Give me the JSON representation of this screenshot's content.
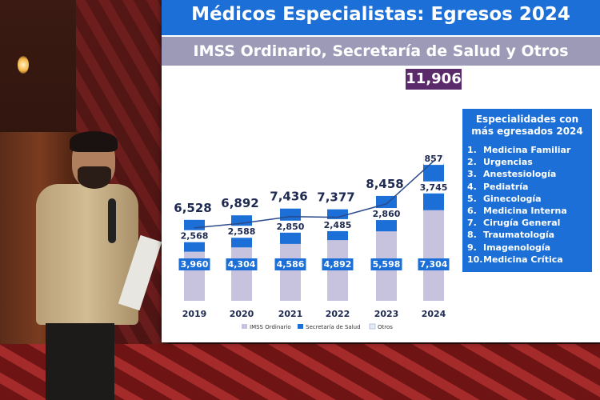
{
  "title": "Médicos Especialistas: Egresos 2024",
  "subtitle": "IMSS Ordinario, Secretaría de Salud y Otros",
  "highlight_total": "11,906",
  "panel": {
    "title_line1": "Especialidades con",
    "title_line2": "más egresados 2024",
    "items": [
      {
        "n": "1.",
        "label": "Medicina Familiar"
      },
      {
        "n": "2.",
        "label": "Urgencias"
      },
      {
        "n": "3.",
        "label": "Anestesiología"
      },
      {
        "n": "4.",
        "label": "Pediatría"
      },
      {
        "n": "5.",
        "label": "Ginecología"
      },
      {
        "n": "6.",
        "label": "Medicina Interna"
      },
      {
        "n": "7.",
        "label": "Cirugía General"
      },
      {
        "n": "8.",
        "label": "Traumatología"
      },
      {
        "n": "9.",
        "label": "Imagenología"
      },
      {
        "n": "10.",
        "label": "Medicina Crítica"
      }
    ]
  },
  "colors": {
    "imss": "#c7c2dd",
    "salud": "#1c6fd6",
    "otros": "#e4ecf7",
    "accent": "#5a2a6a"
  },
  "chart_data": {
    "type": "bar",
    "stacked": true,
    "categories": [
      "2019",
      "2020",
      "2021",
      "2022",
      "2023",
      "2024"
    ],
    "totals": [
      6528,
      6892,
      7436,
      7377,
      8458,
      11906
    ],
    "total_labels": [
      "6,528",
      "6,892",
      "7,436",
      "7,377",
      "8,458",
      "11,906"
    ],
    "series": [
      {
        "name": "IMSS Ordinario",
        "values": [
          3960,
          4304,
          4586,
          4892,
          5598,
          7304
        ],
        "labels": [
          "3,960",
          "4,304",
          "4,586",
          "4,892",
          "5,598",
          "7,304"
        ]
      },
      {
        "name": "Secretaría de Salud",
        "values": [
          2568,
          2588,
          2850,
          2485,
          2860,
          3745
        ],
        "labels": [
          "2,568",
          "2,588",
          "2,850",
          "2,485",
          "2,860",
          "3,745"
        ]
      },
      {
        "name": "Otros",
        "values": [
          0,
          0,
          0,
          0,
          0,
          857
        ],
        "labels": [
          "",
          "",
          "",
          "",
          "",
          "857"
        ]
      }
    ],
    "trend_line": true,
    "legend_position": "bottom",
    "grid": false
  }
}
